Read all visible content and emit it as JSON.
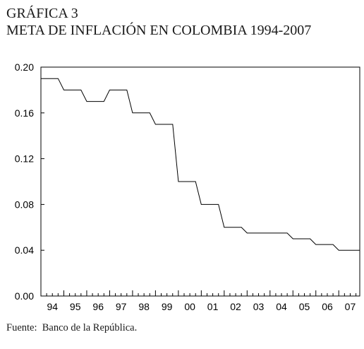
{
  "figure": {
    "label": "GRÁFICA 3",
    "title": "META DE INFLACIÓN EN COLOMBIA 1994-2007",
    "source": "Fuente:  Banco de la República."
  },
  "chart_data": {
    "type": "line",
    "title": "META DE INFLACIÓN EN COLOMBIA 1994-2007",
    "xlabel": "",
    "ylabel": "",
    "ylim": [
      0,
      0.2
    ],
    "xlim": [
      1994.0,
      2007.917
    ],
    "yticks": [
      "0.00",
      "0.04",
      "0.08",
      "0.12",
      "0.16",
      "0.20"
    ],
    "xticks": [
      "94",
      "95",
      "96",
      "97",
      "98",
      "99",
      "00",
      "01",
      "02",
      "03",
      "04",
      "05",
      "06",
      "07"
    ],
    "grid": false,
    "series": [
      {
        "line_style": "step",
        "color": "#000000",
        "x": [
          1994.0,
          1994.75,
          1995.0,
          1995.75,
          1996.0,
          1996.75,
          1997.0,
          1997.75,
          1998.0,
          1998.75,
          1999.0,
          1999.75,
          2000.0,
          2000.75,
          2001.0,
          2001.75,
          2002.0,
          2002.75,
          2003.0,
          2003.75,
          2004.0,
          2004.75,
          2005.0,
          2005.75,
          2006.0,
          2006.75,
          2007.0,
          2007.917
        ],
        "y": [
          0.19,
          0.19,
          0.18,
          0.18,
          0.17,
          0.17,
          0.18,
          0.18,
          0.16,
          0.16,
          0.15,
          0.15,
          0.1,
          0.1,
          0.08,
          0.08,
          0.06,
          0.06,
          0.055,
          0.055,
          0.055,
          0.055,
          0.05,
          0.05,
          0.045,
          0.045,
          0.04,
          0.04
        ]
      }
    ]
  }
}
